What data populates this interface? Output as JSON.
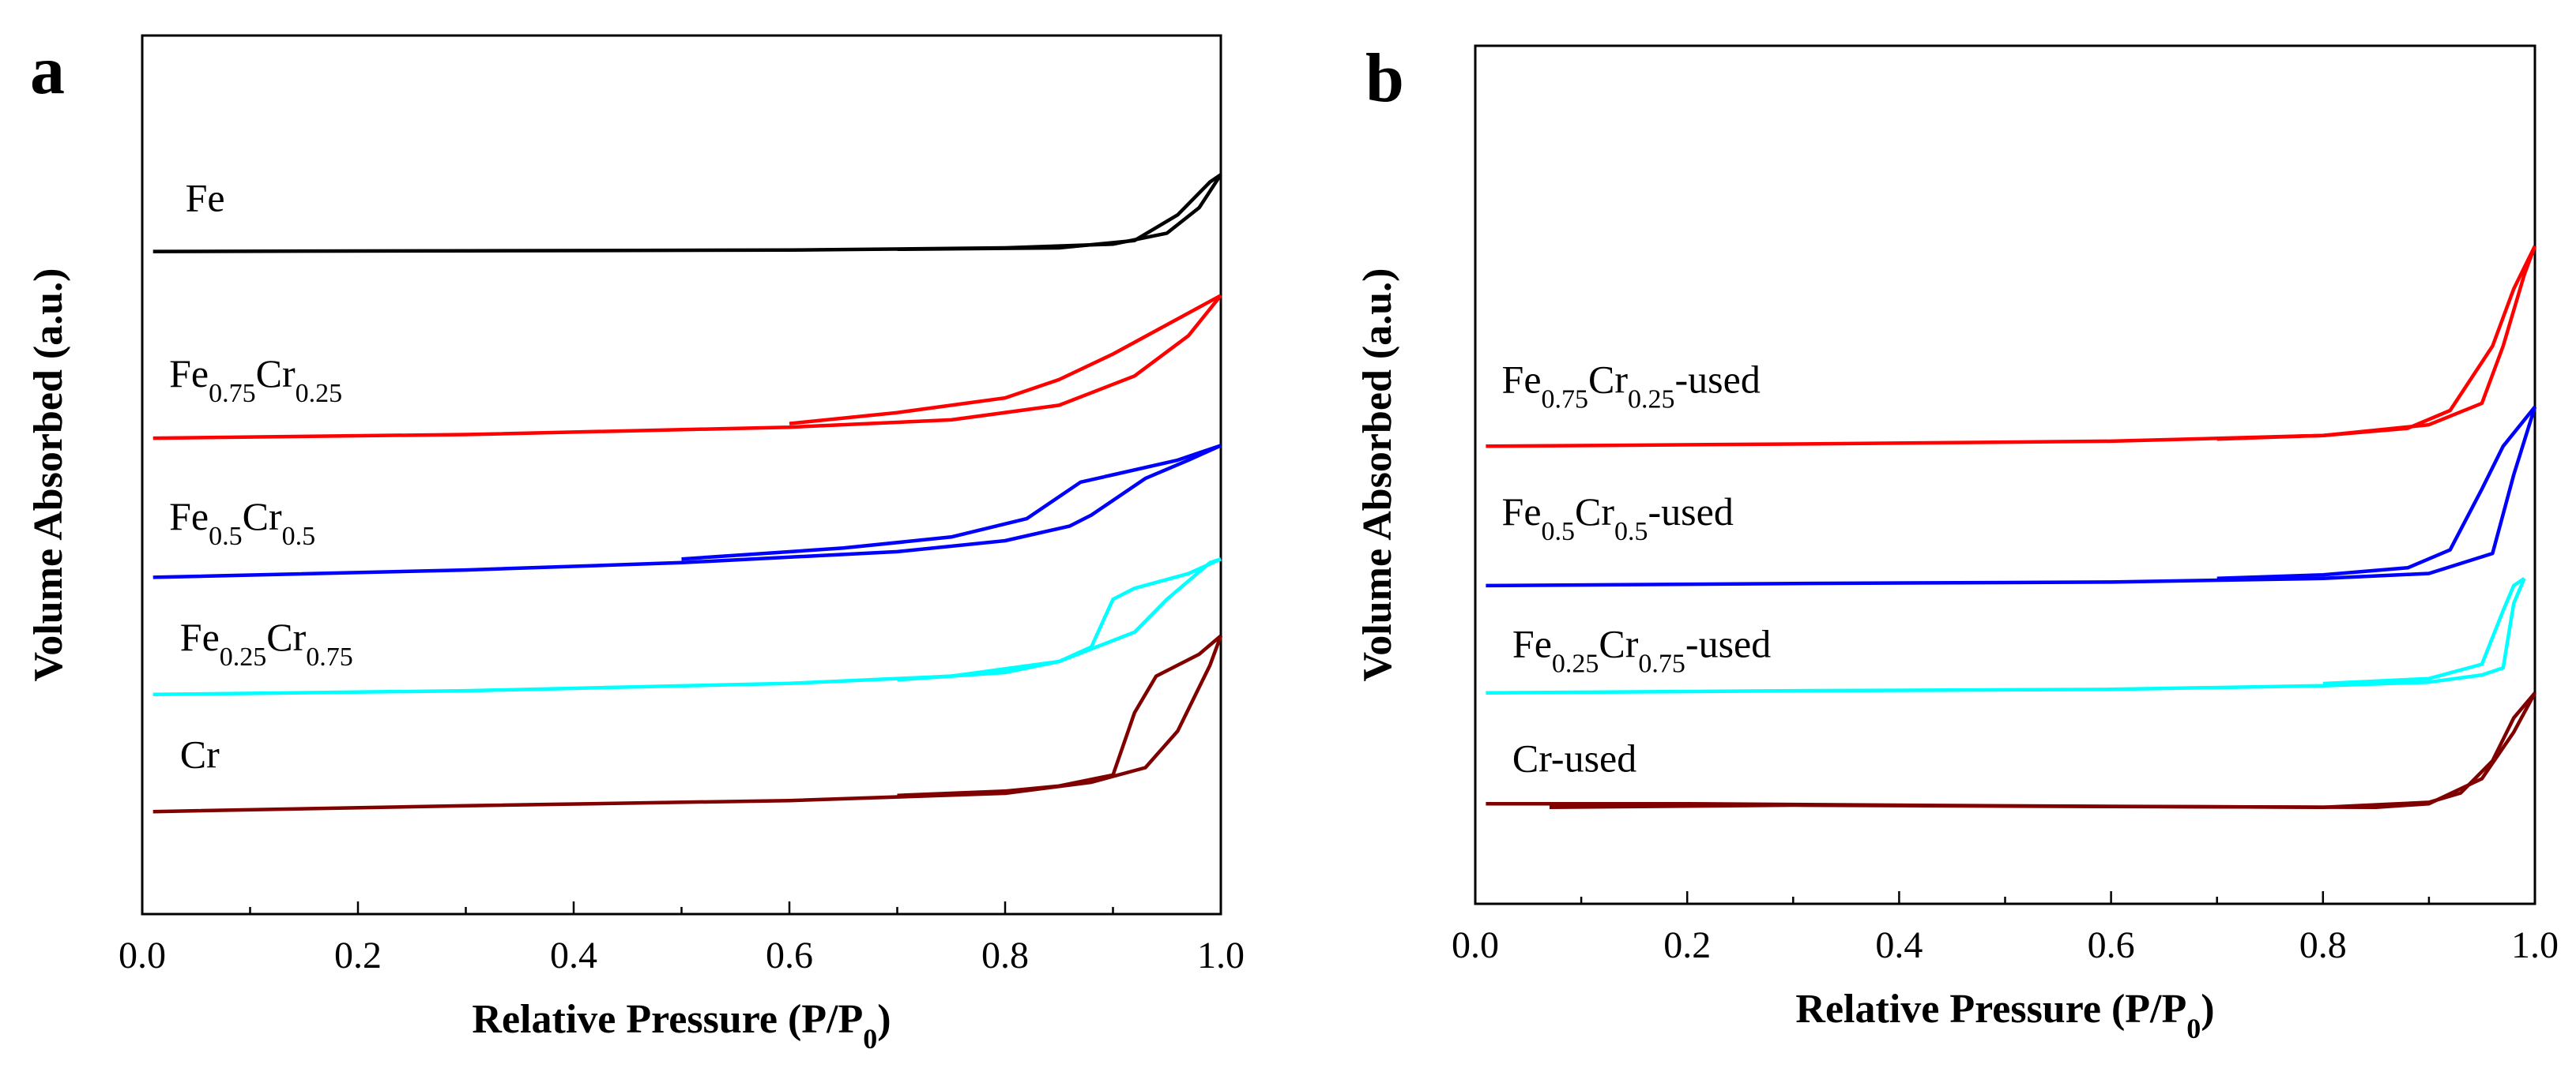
{
  "chart_data": [
    {
      "panel": "a",
      "type": "line",
      "xlabel": "Relative Pressure (P/P0)",
      "xlabel_parts": {
        "main": "Relative Pressure (P/P",
        "sub": "0",
        "close": ")"
      },
      "ylabel": "Volume Absorbed (a.u.)",
      "xlim": [
        0.0,
        1.0
      ],
      "ylim": [
        0,
        12
      ],
      "xticks": [
        "0.0",
        "0.2",
        "0.4",
        "0.6",
        "0.8",
        "1.0"
      ],
      "yticks_shown": false,
      "series": [
        {
          "name": "Fe",
          "label_parts": [
            {
              "t": "Fe"
            }
          ],
          "color": "#000000",
          "label_at": [
            0.04,
            9.6
          ],
          "adsorption": [
            [
              0.01,
              9.05
            ],
            [
              0.3,
              9.06
            ],
            [
              0.6,
              9.07
            ],
            [
              0.8,
              9.1
            ],
            [
              0.9,
              9.15
            ],
            [
              0.95,
              9.3
            ],
            [
              0.98,
              9.65
            ],
            [
              1.0,
              10.1
            ]
          ],
          "desorption": [
            [
              1.0,
              10.1
            ],
            [
              0.99,
              10.0
            ],
            [
              0.96,
              9.55
            ],
            [
              0.92,
              9.2
            ],
            [
              0.85,
              9.1
            ],
            [
              0.7,
              9.08
            ]
          ]
        },
        {
          "name": "Fe0.75Cr0.25",
          "label_parts": [
            {
              "t": "Fe"
            },
            {
              "s": "0.75"
            },
            {
              "t": "Cr"
            },
            {
              "s": "0.25"
            }
          ],
          "color": "#ff0000",
          "label_at": [
            0.025,
            7.2
          ],
          "adsorption": [
            [
              0.01,
              6.5
            ],
            [
              0.3,
              6.55
            ],
            [
              0.6,
              6.65
            ],
            [
              0.75,
              6.75
            ],
            [
              0.85,
              6.95
            ],
            [
              0.92,
              7.35
            ],
            [
              0.97,
              7.9
            ],
            [
              1.0,
              8.45
            ]
          ],
          "desorption": [
            [
              1.0,
              8.45
            ],
            [
              0.95,
              8.05
            ],
            [
              0.9,
              7.65
            ],
            [
              0.85,
              7.3
            ],
            [
              0.8,
              7.05
            ],
            [
              0.7,
              6.85
            ],
            [
              0.6,
              6.7
            ]
          ]
        },
        {
          "name": "Fe0.5Cr0.5",
          "label_parts": [
            {
              "t": "Fe"
            },
            {
              "s": "0.5"
            },
            {
              "t": "Cr"
            },
            {
              "s": "0.5"
            }
          ],
          "color": "#0000ff",
          "label_at": [
            0.025,
            5.25
          ],
          "adsorption": [
            [
              0.01,
              4.6
            ],
            [
              0.3,
              4.7
            ],
            [
              0.5,
              4.8
            ],
            [
              0.7,
              4.95
            ],
            [
              0.8,
              5.1
            ],
            [
              0.86,
              5.3
            ],
            [
              0.88,
              5.45
            ],
            [
              0.93,
              5.95
            ],
            [
              0.97,
              6.2
            ],
            [
              1.0,
              6.4
            ]
          ],
          "desorption": [
            [
              1.0,
              6.4
            ],
            [
              0.96,
              6.2
            ],
            [
              0.9,
              6.0
            ],
            [
              0.87,
              5.9
            ],
            [
              0.82,
              5.4
            ],
            [
              0.75,
              5.15
            ],
            [
              0.65,
              5.0
            ],
            [
              0.5,
              4.85
            ]
          ]
        },
        {
          "name": "Fe0.25Cr0.75",
          "label_parts": [
            {
              "t": "Fe"
            },
            {
              "s": "0.25"
            },
            {
              "t": "Cr"
            },
            {
              "s": "0.75"
            }
          ],
          "color": "#00ffff",
          "label_at": [
            0.035,
            3.6
          ],
          "adsorption": [
            [
              0.01,
              3.0
            ],
            [
              0.3,
              3.05
            ],
            [
              0.6,
              3.15
            ],
            [
              0.75,
              3.25
            ],
            [
              0.85,
              3.45
            ],
            [
              0.92,
              3.85
            ],
            [
              0.95,
              4.3
            ],
            [
              0.99,
              4.8
            ],
            [
              1.0,
              4.85
            ]
          ],
          "desorption": [
            [
              1.0,
              4.85
            ],
            [
              0.97,
              4.65
            ],
            [
              0.92,
              4.45
            ],
            [
              0.9,
              4.3
            ],
            [
              0.88,
              3.65
            ],
            [
              0.85,
              3.45
            ],
            [
              0.8,
              3.3
            ],
            [
              0.7,
              3.2
            ]
          ]
        },
        {
          "name": "Cr",
          "label_parts": [
            {
              "t": "Cr"
            }
          ],
          "color": "#800000",
          "label_at": [
            0.035,
            2.0
          ],
          "adsorption": [
            [
              0.01,
              1.4
            ],
            [
              0.3,
              1.48
            ],
            [
              0.6,
              1.55
            ],
            [
              0.8,
              1.65
            ],
            [
              0.88,
              1.8
            ],
            [
              0.93,
              2.0
            ],
            [
              0.96,
              2.5
            ],
            [
              0.99,
              3.4
            ],
            [
              1.0,
              3.8
            ]
          ],
          "desorption": [
            [
              1.0,
              3.8
            ],
            [
              0.98,
              3.55
            ],
            [
              0.94,
              3.25
            ],
            [
              0.92,
              2.75
            ],
            [
              0.9,
              1.9
            ],
            [
              0.85,
              1.75
            ],
            [
              0.8,
              1.68
            ],
            [
              0.7,
              1.62
            ]
          ]
        }
      ]
    },
    {
      "panel": "b",
      "type": "line",
      "xlabel": "Relative Pressure (P/P0)",
      "xlabel_parts": {
        "main": "Relative Pressure (P/P",
        "sub": "0",
        "close": ")"
      },
      "ylabel": "Volume Absorbed (a.u.)",
      "xlim": [
        0.0,
        1.0
      ],
      "ylim": [
        0,
        12
      ],
      "xticks": [
        "0.0",
        "0.2",
        "0.4",
        "0.6",
        "0.8",
        "1.0"
      ],
      "yticks_shown": false,
      "series": [
        {
          "name": "Fe0.75Cr0.25-used",
          "label_parts": [
            {
              "t": "Fe"
            },
            {
              "s": "0.75"
            },
            {
              "t": "Cr"
            },
            {
              "s": "0.25"
            },
            {
              "t": "-used"
            }
          ],
          "color": "#ff0000",
          "label_at": [
            0.025,
            7.15
          ],
          "adsorption": [
            [
              0.01,
              6.4
            ],
            [
              0.3,
              6.43
            ],
            [
              0.6,
              6.47
            ],
            [
              0.8,
              6.55
            ],
            [
              0.9,
              6.7
            ],
            [
              0.95,
              7.0
            ],
            [
              0.97,
              7.8
            ],
            [
              0.99,
              8.8
            ],
            [
              1.0,
              9.2
            ]
          ],
          "desorption": [
            [
              1.0,
              9.2
            ],
            [
              0.98,
              8.6
            ],
            [
              0.96,
              7.8
            ],
            [
              0.92,
              6.9
            ],
            [
              0.88,
              6.65
            ],
            [
              0.8,
              6.55
            ],
            [
              0.7,
              6.5
            ]
          ]
        },
        {
          "name": "Fe0.5Cr0.5-used",
          "label_parts": [
            {
              "t": "Fe"
            },
            {
              "s": "0.5"
            },
            {
              "t": "Cr"
            },
            {
              "s": "0.5"
            },
            {
              "t": "-used"
            }
          ],
          "color": "#0000ff",
          "label_at": [
            0.025,
            5.3
          ],
          "adsorption": [
            [
              0.01,
              4.45
            ],
            [
              0.3,
              4.48
            ],
            [
              0.6,
              4.5
            ],
            [
              0.8,
              4.55
            ],
            [
              0.9,
              4.62
            ],
            [
              0.96,
              4.9
            ],
            [
              0.98,
              6.0
            ],
            [
              1.0,
              6.95
            ]
          ],
          "desorption": [
            [
              1.0,
              6.95
            ],
            [
              0.97,
              6.4
            ],
            [
              0.95,
              5.8
            ],
            [
              0.92,
              4.95
            ],
            [
              0.88,
              4.7
            ],
            [
              0.8,
              4.6
            ],
            [
              0.7,
              4.55
            ]
          ]
        },
        {
          "name": "Fe0.25Cr0.75-used",
          "label_parts": [
            {
              "t": "Fe"
            },
            {
              "s": "0.25"
            },
            {
              "t": "Cr"
            },
            {
              "s": "0.75"
            },
            {
              "t": "-used"
            }
          ],
          "color": "#00ffff",
          "label_at": [
            0.035,
            3.45
          ],
          "adsorption": [
            [
              0.01,
              2.95
            ],
            [
              0.3,
              2.98
            ],
            [
              0.6,
              3.0
            ],
            [
              0.8,
              3.05
            ],
            [
              0.9,
              3.1
            ],
            [
              0.95,
              3.2
            ],
            [
              0.97,
              3.3
            ],
            [
              0.98,
              4.2
            ],
            [
              0.99,
              4.55
            ]
          ],
          "desorption": [
            [
              0.99,
              4.55
            ],
            [
              0.98,
              4.45
            ],
            [
              0.97,
              4.1
            ],
            [
              0.95,
              3.35
            ],
            [
              0.9,
              3.15
            ],
            [
              0.8,
              3.08
            ]
          ]
        },
        {
          "name": "Cr-used",
          "label_parts": [
            {
              "t": "Cr-used"
            }
          ],
          "color": "#800000",
          "label_at": [
            0.035,
            1.85
          ],
          "adsorption": [
            [
              0.01,
              1.4
            ],
            [
              0.2,
              1.4
            ],
            [
              0.5,
              1.37
            ],
            [
              0.8,
              1.35
            ],
            [
              0.9,
              1.42
            ],
            [
              0.93,
              1.55
            ],
            [
              0.96,
              2.0
            ],
            [
              0.98,
              2.6
            ],
            [
              1.0,
              2.95
            ]
          ],
          "desorption": [
            [
              1.0,
              2.95
            ],
            [
              0.98,
              2.4
            ],
            [
              0.95,
              1.75
            ],
            [
              0.9,
              1.4
            ],
            [
              0.85,
              1.35
            ],
            [
              0.6,
              1.36
            ],
            [
              0.3,
              1.38
            ],
            [
              0.07,
              1.35
            ]
          ]
        }
      ]
    }
  ]
}
